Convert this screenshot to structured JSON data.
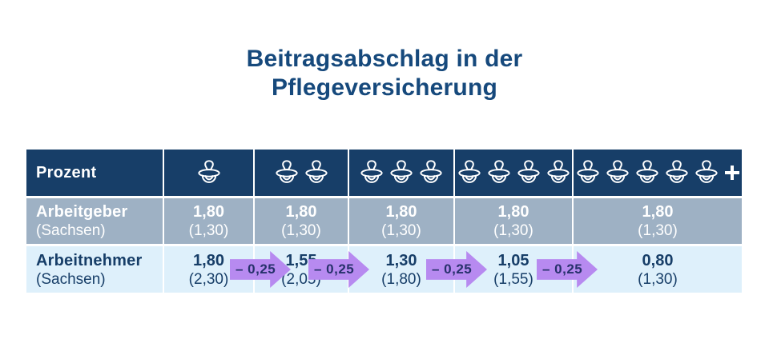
{
  "title": {
    "line1": "Beitragsabschlag in der",
    "line2": "Pflegeversicherung"
  },
  "colors": {
    "title_text": "#16497c",
    "header_bg": "#173e68",
    "employer_row_bg": "#9eb1c4",
    "employee_row_bg": "#def0fb",
    "arrow_fill": "#b78af0",
    "arrow_text": "#26316b",
    "text_on_dark": "#ffffff",
    "text_navy": "#173e68"
  },
  "table": {
    "header": {
      "label": "Prozent",
      "child_columns": [
        {
          "pacifiers": 1,
          "plus": false
        },
        {
          "pacifiers": 2,
          "plus": false
        },
        {
          "pacifiers": 3,
          "plus": false
        },
        {
          "pacifiers": 4,
          "plus": false
        },
        {
          "pacifiers": 5,
          "plus": true
        }
      ]
    },
    "rows": [
      {
        "label": "Arbeitgeber",
        "sublabel": "(Sachsen)",
        "values": [
          {
            "main": "1,80",
            "sub": "(1,30)"
          },
          {
            "main": "1,80",
            "sub": "(1,30)"
          },
          {
            "main": "1,80",
            "sub": "(1,30)"
          },
          {
            "main": "1,80",
            "sub": "(1,30)"
          },
          {
            "main": "1,80",
            "sub": "(1,30)"
          }
        ]
      },
      {
        "label": "Arbeitnehmer",
        "sublabel": "(Sachsen)",
        "values": [
          {
            "main": "1,80",
            "sub": "(2,30)"
          },
          {
            "main": "1,55",
            "sub": "(2,05)"
          },
          {
            "main": "1,30",
            "sub": "(1,80)"
          },
          {
            "main": "1,05",
            "sub": "(1,55)"
          },
          {
            "main": "0,80",
            "sub": "(1,30)"
          }
        ]
      }
    ],
    "arrows": [
      {
        "label": "– 0,25"
      },
      {
        "label": "– 0,25"
      },
      {
        "label": "– 0,25"
      },
      {
        "label": "– 0,25"
      }
    ]
  },
  "icons": {
    "pacifier": "pacifier-icon",
    "plus": "plus-icon"
  },
  "chart_data": {
    "type": "table",
    "title": "Beitragsabschlag in der Pflegeversicherung",
    "unit": "Prozent",
    "columns_children": [
      1,
      2,
      3,
      4,
      5
    ],
    "last_column_is_5_or_more": true,
    "rows": [
      {
        "name": "Arbeitgeber (Sachsen)",
        "values": [
          1.8,
          1.8,
          1.8,
          1.8,
          1.8
        ],
        "values_parenthetical": [
          1.3,
          1.3,
          1.3,
          1.3,
          1.3
        ]
      },
      {
        "name": "Arbeitnehmer (Sachsen)",
        "values": [
          1.8,
          1.55,
          1.3,
          1.05,
          0.8
        ],
        "values_parenthetical": [
          2.3,
          2.05,
          1.8,
          1.55,
          1.3
        ]
      }
    ],
    "step_between_columns": -0.25
  }
}
